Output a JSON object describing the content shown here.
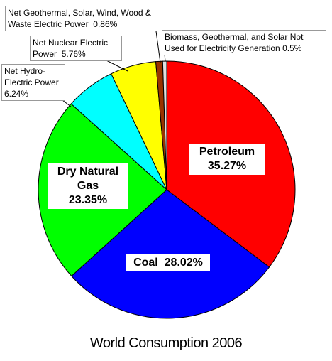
{
  "chart_data": {
    "type": "pie",
    "title": "World Consumption 2006",
    "categories": [
      "Petroleum",
      "Coal",
      "Dry Natural Gas",
      "Net Hydro-Electric Power",
      "Net Nuclear Electric Power",
      "Net Geothermal, Solar, Wind, Wood & Waste Electric Power",
      "Biomass, Geothermal, and Solar Not Used for Electricity Generation"
    ],
    "values": [
      35.27,
      28.02,
      23.35,
      6.24,
      5.76,
      0.86,
      0.5
    ],
    "value_labels": [
      "35.27%",
      "28.02%",
      "23.35%",
      "6.24%",
      "5.76%",
      "0.86%",
      "0.5%"
    ],
    "colors": [
      "#ff0000",
      "#0000ff",
      "#00ff00",
      "#00ffff",
      "#ffff00",
      "#993300",
      "#e0e0e0"
    ]
  }
}
